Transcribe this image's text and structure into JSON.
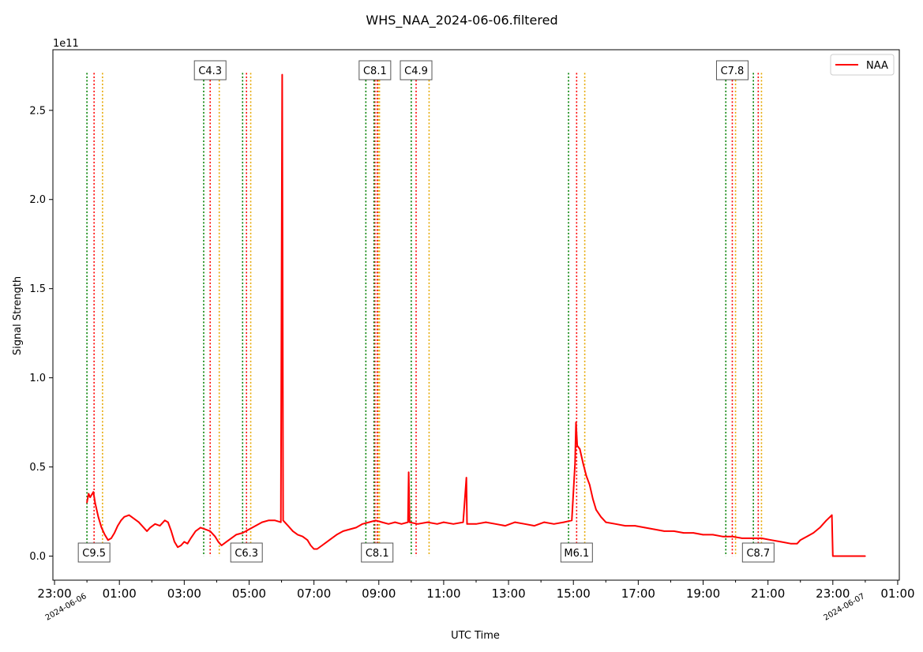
{
  "chart_data": {
    "type": "line",
    "title": "WHS_NAA_2024-06-06.filtered",
    "xlabel": "UTC Time",
    "ylabel": "Signal Strength",
    "y_exponent_label": "1e11",
    "x_unit": "hours UTC relative to 2024-06-06 00:00",
    "xlim": [
      -1.05,
      25.05
    ],
    "ylim": [
      -0.135,
      2.84
    ],
    "x_ticks": [
      {
        "x": -1,
        "label": "23:00"
      },
      {
        "x": 1,
        "label": "01:00"
      },
      {
        "x": 3,
        "label": "03:00"
      },
      {
        "x": 5,
        "label": "05:00"
      },
      {
        "x": 7,
        "label": "07:00"
      },
      {
        "x": 9,
        "label": "09:00"
      },
      {
        "x": 11,
        "label": "11:00"
      },
      {
        "x": 13,
        "label": "13:00"
      },
      {
        "x": 15,
        "label": "15:00"
      },
      {
        "x": 17,
        "label": "17:00"
      },
      {
        "x": 19,
        "label": "19:00"
      },
      {
        "x": 21,
        "label": "21:00"
      },
      {
        "x": 23,
        "label": "23:00"
      },
      {
        "x": 25,
        "label": "01:00"
      }
    ],
    "x_minor_ticks": [
      0,
      2,
      4,
      6,
      8,
      10,
      12,
      14,
      16,
      18,
      20,
      22,
      24
    ],
    "date_ticks": [
      {
        "x": 0,
        "label": "2024-06-06"
      },
      {
        "x": 24,
        "label": "2024-06-07"
      }
    ],
    "y_ticks": [
      {
        "y": 0.0,
        "label": "0.0"
      },
      {
        "y": 0.5,
        "label": "0.5"
      },
      {
        "y": 1.0,
        "label": "1.0"
      },
      {
        "y": 1.5,
        "label": "1.5"
      },
      {
        "y": 2.0,
        "label": "2.0"
      },
      {
        "y": 2.5,
        "label": "2.5"
      }
    ],
    "legend": {
      "position": "top-right",
      "entries": [
        {
          "name": "NAA",
          "color": "#ff0000"
        }
      ]
    },
    "series": [
      {
        "name": "NAA",
        "color": "#ff0000",
        "points": [
          [
            0.0,
            0.3
          ],
          [
            0.05,
            0.35
          ],
          [
            0.1,
            0.33
          ],
          [
            0.2,
            0.36
          ],
          [
            0.25,
            0.3
          ],
          [
            0.35,
            0.22
          ],
          [
            0.45,
            0.16
          ],
          [
            0.55,
            0.12
          ],
          [
            0.65,
            0.09
          ],
          [
            0.75,
            0.1
          ],
          [
            0.85,
            0.13
          ],
          [
            0.95,
            0.17
          ],
          [
            1.05,
            0.2
          ],
          [
            1.15,
            0.22
          ],
          [
            1.3,
            0.23
          ],
          [
            1.45,
            0.21
          ],
          [
            1.6,
            0.19
          ],
          [
            1.75,
            0.16
          ],
          [
            1.85,
            0.14
          ],
          [
            1.95,
            0.16
          ],
          [
            2.1,
            0.18
          ],
          [
            2.25,
            0.17
          ],
          [
            2.4,
            0.2
          ],
          [
            2.5,
            0.19
          ],
          [
            2.6,
            0.14
          ],
          [
            2.7,
            0.08
          ],
          [
            2.8,
            0.05
          ],
          [
            2.9,
            0.06
          ],
          [
            3.0,
            0.08
          ],
          [
            3.1,
            0.07
          ],
          [
            3.2,
            0.1
          ],
          [
            3.35,
            0.14
          ],
          [
            3.5,
            0.16
          ],
          [
            3.65,
            0.15
          ],
          [
            3.8,
            0.14
          ],
          [
            3.95,
            0.11
          ],
          [
            4.05,
            0.08
          ],
          [
            4.15,
            0.06
          ],
          [
            4.3,
            0.08
          ],
          [
            4.45,
            0.1
          ],
          [
            4.6,
            0.12
          ],
          [
            4.8,
            0.13
          ],
          [
            5.0,
            0.15
          ],
          [
            5.2,
            0.17
          ],
          [
            5.4,
            0.19
          ],
          [
            5.6,
            0.2
          ],
          [
            5.8,
            0.2
          ],
          [
            5.98,
            0.19
          ],
          [
            6.02,
            2.7
          ],
          [
            6.05,
            0.2
          ],
          [
            6.2,
            0.17
          ],
          [
            6.35,
            0.14
          ],
          [
            6.5,
            0.12
          ],
          [
            6.65,
            0.11
          ],
          [
            6.8,
            0.09
          ],
          [
            6.9,
            0.06
          ],
          [
            7.0,
            0.04
          ],
          [
            7.1,
            0.04
          ],
          [
            7.25,
            0.06
          ],
          [
            7.4,
            0.08
          ],
          [
            7.55,
            0.1
          ],
          [
            7.7,
            0.12
          ],
          [
            7.9,
            0.14
          ],
          [
            8.1,
            0.15
          ],
          [
            8.3,
            0.16
          ],
          [
            8.5,
            0.18
          ],
          [
            8.7,
            0.19
          ],
          [
            8.9,
            0.2
          ],
          [
            9.1,
            0.19
          ],
          [
            9.3,
            0.18
          ],
          [
            9.5,
            0.19
          ],
          [
            9.7,
            0.18
          ],
          [
            9.9,
            0.19
          ],
          [
            9.92,
            0.47
          ],
          [
            9.95,
            0.19
          ],
          [
            10.2,
            0.18
          ],
          [
            10.5,
            0.19
          ],
          [
            10.8,
            0.18
          ],
          [
            11.0,
            0.19
          ],
          [
            11.3,
            0.18
          ],
          [
            11.6,
            0.19
          ],
          [
            11.7,
            0.44
          ],
          [
            11.72,
            0.18
          ],
          [
            12.0,
            0.18
          ],
          [
            12.3,
            0.19
          ],
          [
            12.6,
            0.18
          ],
          [
            12.9,
            0.17
          ],
          [
            13.2,
            0.19
          ],
          [
            13.5,
            0.18
          ],
          [
            13.8,
            0.17
          ],
          [
            14.1,
            0.19
          ],
          [
            14.4,
            0.18
          ],
          [
            14.7,
            0.19
          ],
          [
            14.95,
            0.2
          ],
          [
            15.05,
            0.52
          ],
          [
            15.08,
            0.75
          ],
          [
            15.12,
            0.62
          ],
          [
            15.2,
            0.6
          ],
          [
            15.3,
            0.52
          ],
          [
            15.4,
            0.45
          ],
          [
            15.5,
            0.4
          ],
          [
            15.6,
            0.32
          ],
          [
            15.7,
            0.26
          ],
          [
            15.85,
            0.22
          ],
          [
            16.0,
            0.19
          ],
          [
            16.3,
            0.18
          ],
          [
            16.6,
            0.17
          ],
          [
            16.9,
            0.17
          ],
          [
            17.2,
            0.16
          ],
          [
            17.5,
            0.15
          ],
          [
            17.8,
            0.14
          ],
          [
            18.1,
            0.14
          ],
          [
            18.4,
            0.13
          ],
          [
            18.7,
            0.13
          ],
          [
            19.0,
            0.12
          ],
          [
            19.3,
            0.12
          ],
          [
            19.6,
            0.11
          ],
          [
            19.9,
            0.11
          ],
          [
            20.2,
            0.1
          ],
          [
            20.5,
            0.1
          ],
          [
            20.8,
            0.1
          ],
          [
            21.1,
            0.09
          ],
          [
            21.4,
            0.08
          ],
          [
            21.7,
            0.07
          ],
          [
            21.9,
            0.07
          ],
          [
            22.0,
            0.09
          ],
          [
            22.2,
            0.11
          ],
          [
            22.4,
            0.13
          ],
          [
            22.6,
            0.16
          ],
          [
            22.8,
            0.2
          ],
          [
            22.97,
            0.23
          ],
          [
            23.0,
            0.0
          ],
          [
            24.0,
            0.0
          ]
        ]
      }
    ],
    "flare_markers": [
      {
        "label": "C9.5",
        "label_at": "bottom",
        "start": 0.0,
        "peak": 0.22,
        "end": 0.48
      },
      {
        "label": "C4.3",
        "label_at": "top",
        "start": 3.6,
        "peak": 3.8,
        "end": 4.08
      },
      {
        "label": "C6.3",
        "label_at": "bottom",
        "start": 4.8,
        "peak": 4.92,
        "end": 5.05
      },
      {
        "label": "C8.1",
        "label_at": "top",
        "start": 8.6,
        "peak": 8.88,
        "end": 8.98
      },
      {
        "label": "C8.1",
        "label_at": "bottom",
        "start": 8.85,
        "peak": 8.95,
        "end": 9.02
      },
      {
        "label": "C4.9",
        "label_at": "top",
        "start": 10.0,
        "peak": 10.15,
        "end": 10.55
      },
      {
        "label": "M6.1",
        "label_at": "bottom",
        "start": 14.85,
        "peak": 15.1,
        "end": 15.35
      },
      {
        "label": "C7.8",
        "label_at": "top",
        "start": 19.7,
        "peak": 19.9,
        "end": 20.0
      },
      {
        "label": "C8.7",
        "label_at": "bottom",
        "start": 20.55,
        "peak": 20.7,
        "end": 20.8
      }
    ],
    "marker_colors": {
      "start": "#008000",
      "peak": "#ff0000",
      "end": "#e6a800"
    },
    "marker_top_y": 2.71,
    "grid": false
  }
}
